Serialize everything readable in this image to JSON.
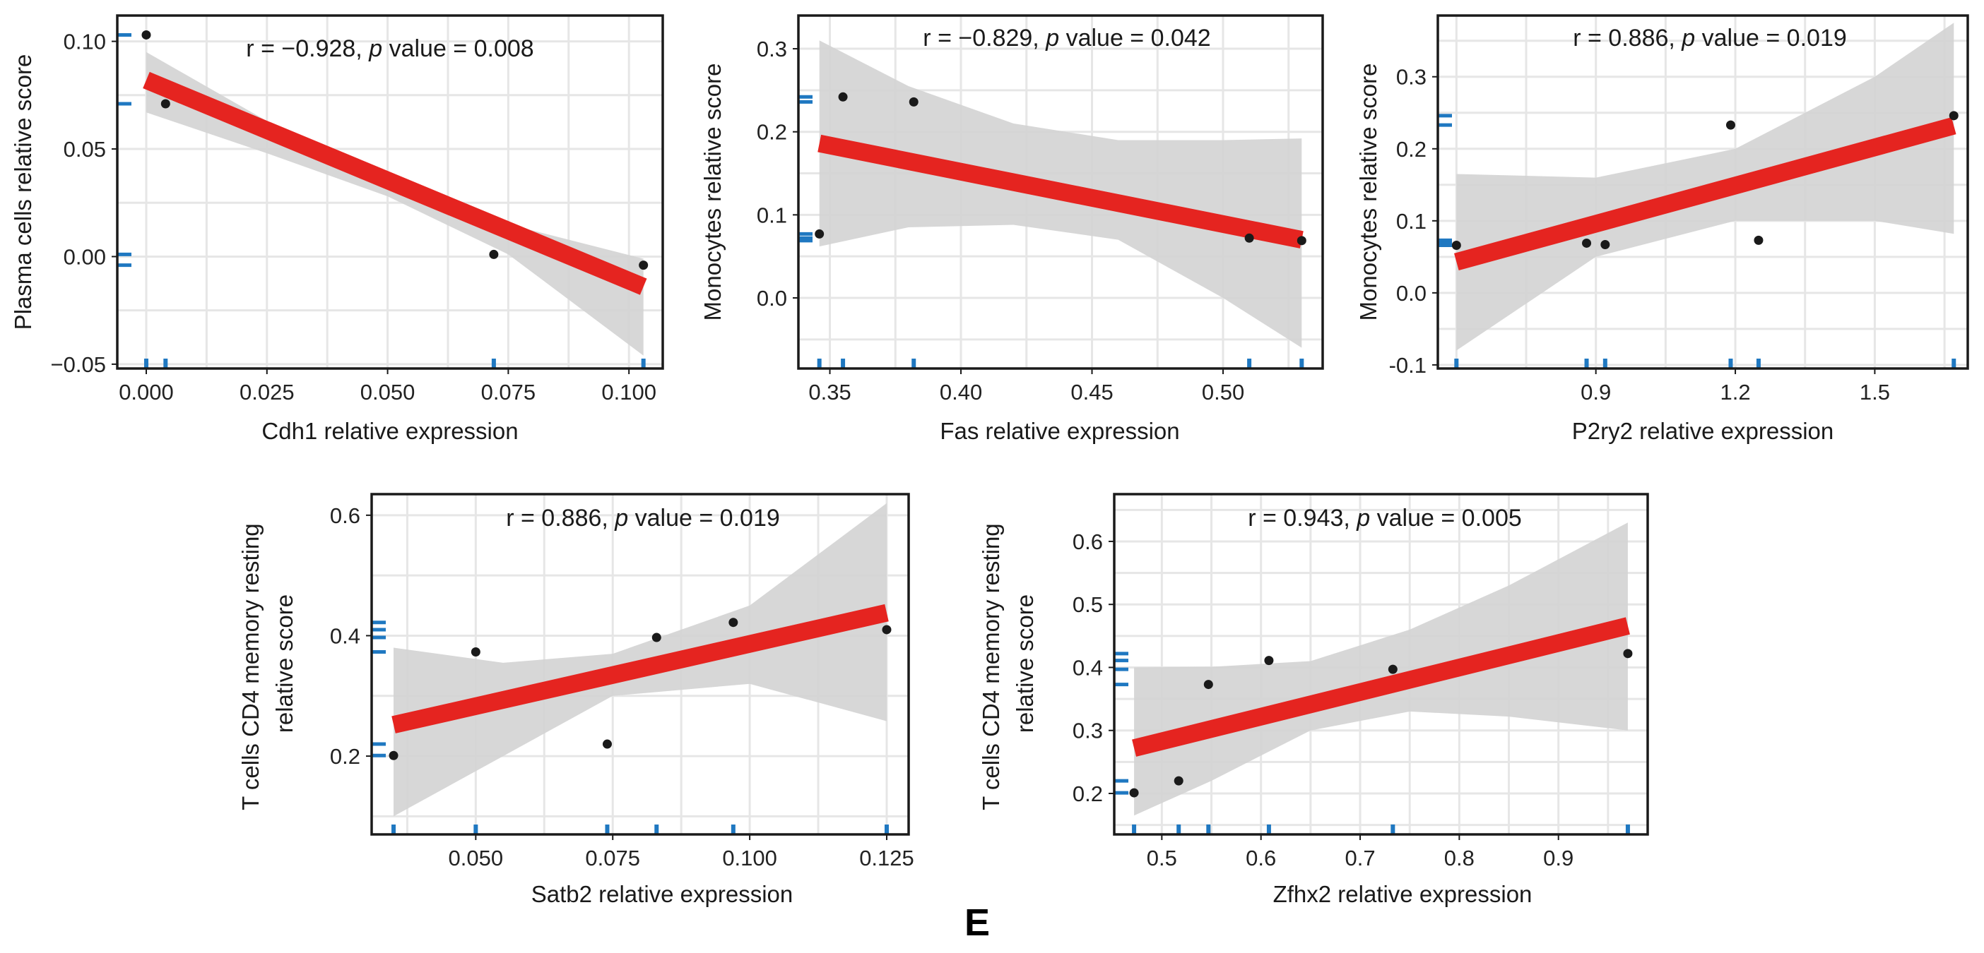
{
  "figure_label": "E",
  "colors": {
    "fit": "#e52420",
    "band": "#d3d3d3",
    "point": "#1a1a1a",
    "rug": "#1f78c1",
    "grid": "#e6e6e6",
    "frame": "#1a1a1a"
  },
  "chart_data": [
    {
      "type": "scatter",
      "id": "cdh1",
      "annotation": {
        "r_prefix": "r = −0.928, ",
        "p_word": "p",
        "p_suffix": " value = 0.008"
      },
      "xlabel": "Cdh1 relative expression",
      "ylabel": [
        "Plasma cells relative score"
      ],
      "xlim": [
        -0.006,
        0.107
      ],
      "ylim": [
        -0.052,
        0.112
      ],
      "xticks": [
        0.0,
        0.025,
        0.05,
        0.075,
        0.1
      ],
      "xtick_labels": [
        "0.000",
        "0.025",
        "0.050",
        "0.075",
        "0.100"
      ],
      "yticks": [
        -0.05,
        0.0,
        0.05,
        0.1
      ],
      "ytick_labels": [
        "−0.05",
        "0.00",
        "0.05",
        "0.10"
      ],
      "points": [
        [
          0.0,
          0.103
        ],
        [
          0.004,
          0.071
        ],
        [
          0.072,
          0.001
        ],
        [
          0.103,
          -0.004
        ]
      ],
      "fit": {
        "x": [
          0.0,
          0.103
        ],
        "y": [
          0.082,
          -0.014
        ]
      },
      "ci_upper": [
        [
          0.0,
          0.095
        ],
        [
          0.025,
          0.063
        ],
        [
          0.05,
          0.037
        ],
        [
          0.075,
          0.015
        ],
        [
          0.103,
          -0.001
        ]
      ],
      "ci_lower": [
        [
          0.0,
          0.067
        ],
        [
          0.025,
          0.048
        ],
        [
          0.05,
          0.028
        ],
        [
          0.075,
          0.001
        ],
        [
          0.103,
          -0.046
        ]
      ]
    },
    {
      "type": "scatter",
      "id": "fas",
      "annotation": {
        "r_prefix": "r = −0.829, ",
        "p_word": "p",
        "p_suffix": " value = 0.042"
      },
      "xlabel": "Fas relative expression",
      "ylabel": [
        "Monocytes relative score"
      ],
      "xlim": [
        0.338,
        0.538
      ],
      "ylim": [
        -0.085,
        0.34
      ],
      "xticks": [
        0.35,
        0.4,
        0.45,
        0.5
      ],
      "xtick_labels": [
        "0.35",
        "0.40",
        "0.45",
        "0.50"
      ],
      "yticks": [
        0.0,
        0.1,
        0.2,
        0.3
      ],
      "ytick_labels": [
        "0.0",
        "0.1",
        "0.2",
        "0.3"
      ],
      "points": [
        [
          0.346,
          0.077
        ],
        [
          0.355,
          0.242
        ],
        [
          0.382,
          0.236
        ],
        [
          0.51,
          0.072
        ],
        [
          0.53,
          0.069
        ]
      ],
      "fit": {
        "x": [
          0.346,
          0.53
        ],
        "y": [
          0.186,
          0.07
        ]
      },
      "ci_upper": [
        [
          0.346,
          0.31
        ],
        [
          0.38,
          0.255
        ],
        [
          0.42,
          0.21
        ],
        [
          0.46,
          0.19
        ],
        [
          0.5,
          0.19
        ],
        [
          0.53,
          0.192
        ]
      ],
      "ci_lower": [
        [
          0.346,
          0.062
        ],
        [
          0.38,
          0.085
        ],
        [
          0.42,
          0.088
        ],
        [
          0.46,
          0.07
        ],
        [
          0.5,
          0.0
        ],
        [
          0.53,
          -0.06
        ]
      ]
    },
    {
      "type": "scatter",
      "id": "p2ry2",
      "annotation": {
        "r_prefix": "r = 0.886, ",
        "p_word": "p",
        "p_suffix": " value = 0.019"
      },
      "xlabel": "P2ry2 relative expression",
      "ylabel": [
        "Monocytes relative score"
      ],
      "xlim": [
        0.56,
        1.7
      ],
      "ylim": [
        -0.105,
        0.385
      ],
      "xticks": [
        0.9,
        1.2,
        1.5
      ],
      "xtick_labels": [
        "0.9",
        "1.2",
        "1.5"
      ],
      "yticks": [
        -0.1,
        0.0,
        0.1,
        0.2,
        0.3
      ],
      "ytick_labels": [
        "-0.1",
        "0.0",
        "0.1",
        "0.2",
        "0.3"
      ],
      "points": [
        [
          0.6,
          0.066
        ],
        [
          0.88,
          0.069
        ],
        [
          0.92,
          0.067
        ],
        [
          1.19,
          0.233
        ],
        [
          1.25,
          0.073
        ],
        [
          1.67,
          0.246
        ]
      ],
      "fit": {
        "x": [
          0.6,
          1.67
        ],
        "y": [
          0.043,
          0.232
        ]
      },
      "ci_upper": [
        [
          0.6,
          0.165
        ],
        [
          0.9,
          0.16
        ],
        [
          1.2,
          0.2
        ],
        [
          1.5,
          0.3
        ],
        [
          1.67,
          0.375
        ]
      ],
      "ci_lower": [
        [
          0.6,
          -0.08
        ],
        [
          0.9,
          0.05
        ],
        [
          1.2,
          0.1
        ],
        [
          1.5,
          0.1
        ],
        [
          1.67,
          0.082
        ]
      ]
    },
    {
      "type": "scatter",
      "id": "satb2",
      "annotation": {
        "r_prefix": "r = 0.886, ",
        "p_word": "p",
        "p_suffix": " value = 0.019"
      },
      "xlabel": "Satb2 relative expression",
      "ylabel": [
        "T cells CD4 memory resting",
        "relative score"
      ],
      "xlim": [
        0.031,
        0.129
      ],
      "ylim": [
        0.07,
        0.635
      ],
      "xticks": [
        0.05,
        0.075,
        0.1,
        0.125
      ],
      "xtick_labels": [
        "0.050",
        "0.075",
        "0.100",
        "0.125"
      ],
      "yticks": [
        0.2,
        0.4,
        0.6
      ],
      "ytick_labels": [
        "0.2",
        "0.4",
        "0.6"
      ],
      "points": [
        [
          0.035,
          0.201
        ],
        [
          0.05,
          0.373
        ],
        [
          0.074,
          0.22
        ],
        [
          0.083,
          0.397
        ],
        [
          0.097,
          0.422
        ],
        [
          0.125,
          0.41
        ]
      ],
      "fit": {
        "x": [
          0.035,
          0.125
        ],
        "y": [
          0.252,
          0.438
        ]
      },
      "ci_upper": [
        [
          0.035,
          0.38
        ],
        [
          0.055,
          0.355
        ],
        [
          0.075,
          0.37
        ],
        [
          0.1,
          0.45
        ],
        [
          0.125,
          0.62
        ]
      ],
      "ci_lower": [
        [
          0.035,
          0.1
        ],
        [
          0.055,
          0.2
        ],
        [
          0.075,
          0.3
        ],
        [
          0.1,
          0.32
        ],
        [
          0.125,
          0.258
        ]
      ]
    },
    {
      "type": "scatter",
      "id": "zfhx2",
      "annotation": {
        "r_prefix": "r = 0.943, ",
        "p_word": "p",
        "p_suffix": " value = 0.005"
      },
      "xlabel": "Zfhx2 relative expression",
      "ylabel": [
        "T cells CD4 memory resting",
        "relative score"
      ],
      "xlim": [
        0.452,
        0.99
      ],
      "ylim": [
        0.135,
        0.675
      ],
      "xticks": [
        0.5,
        0.6,
        0.7,
        0.8,
        0.9
      ],
      "xtick_labels": [
        "0.5",
        "0.6",
        "0.7",
        "0.8",
        "0.9"
      ],
      "yticks": [
        0.2,
        0.3,
        0.4,
        0.5,
        0.6
      ],
      "ytick_labels": [
        "0.2",
        "0.3",
        "0.4",
        "0.5",
        "0.6"
      ],
      "points": [
        [
          0.472,
          0.201
        ],
        [
          0.517,
          0.22
        ],
        [
          0.547,
          0.373
        ],
        [
          0.608,
          0.411
        ],
        [
          0.733,
          0.397
        ],
        [
          0.97,
          0.422
        ]
      ],
      "fit": {
        "x": [
          0.472,
          0.97
        ],
        "y": [
          0.272,
          0.466
        ]
      },
      "ci_upper": [
        [
          0.472,
          0.4
        ],
        [
          0.55,
          0.401
        ],
        [
          0.65,
          0.41
        ],
        [
          0.75,
          0.46
        ],
        [
          0.85,
          0.53
        ],
        [
          0.97,
          0.63
        ]
      ],
      "ci_lower": [
        [
          0.472,
          0.165
        ],
        [
          0.55,
          0.22
        ],
        [
          0.65,
          0.3
        ],
        [
          0.75,
          0.33
        ],
        [
          0.85,
          0.322
        ],
        [
          0.97,
          0.3
        ]
      ]
    }
  ]
}
